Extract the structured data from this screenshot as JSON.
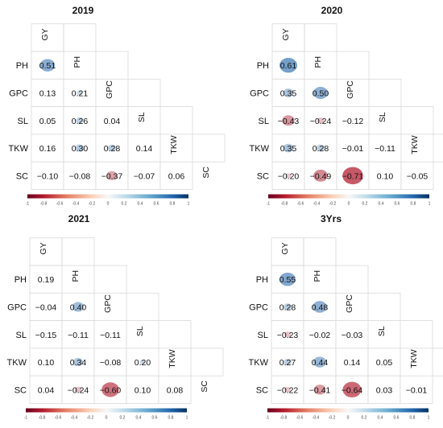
{
  "chart_data": [
    {
      "type": "heatmap",
      "title": "2019",
      "variables": [
        "GY",
        "PH",
        "GPC",
        "SL",
        "TKW",
        "SC"
      ],
      "rows": [
        "PH",
        "GPC",
        "SL",
        "TKW",
        "SC"
      ],
      "lower_triangle": [
        [
          0.51
        ],
        [
          0.13,
          0.21
        ],
        [
          0.05,
          0.26,
          0.04
        ],
        [
          0.16,
          0.3,
          0.28,
          0.14
        ],
        [
          -0.1,
          -0.08,
          -0.37,
          -0.07,
          0.06
        ]
      ],
      "display_labels": [
        [
          "0.51"
        ],
        [
          "0.13",
          "0.21"
        ],
        [
          "0.05",
          "0.26",
          "0.04"
        ],
        [
          "0.16",
          "0.30",
          "0.28",
          "0.14"
        ],
        [
          "−0.10",
          "−0.08",
          "−0.37",
          "−0.07",
          "0.06"
        ]
      ],
      "colorbar": {
        "range": [
          -1,
          1
        ],
        "ticks": [
          "-1",
          "-0.8",
          "-0.6",
          "-0.4",
          "-0.2",
          "0",
          "0.2",
          "0.4",
          "0.6",
          "0.8",
          "1"
        ]
      }
    },
    {
      "type": "heatmap",
      "title": "2020",
      "variables": [
        "GY",
        "PH",
        "GPC",
        "SL",
        "TKW",
        "SC"
      ],
      "rows": [
        "PH",
        "GPC",
        "SL",
        "TKW",
        "SC"
      ],
      "lower_triangle": [
        [
          0.61
        ],
        [
          0.35,
          0.5
        ],
        [
          -0.43,
          -0.24,
          -0.12
        ],
        [
          0.35,
          0.28,
          -0.01,
          -0.11
        ],
        [
          -0.2,
          -0.49,
          -0.71,
          0.1,
          -0.05
        ]
      ],
      "display_labels": [
        [
          "0.61"
        ],
        [
          "0.35",
          "0.50"
        ],
        [
          "−0.43",
          "−0.24",
          "−0.12"
        ],
        [
          "0.35",
          "0.28",
          "−0.01",
          "−0.11"
        ],
        [
          "−0.20",
          "−0.49",
          "−0.71",
          "0.10",
          "−0.05"
        ]
      ],
      "colorbar": {
        "range": [
          -1,
          1
        ],
        "ticks": [
          "-1",
          "-0.8",
          "-0.6",
          "-0.4",
          "-0.2",
          "0",
          "0.2",
          "0.4",
          "0.6",
          "0.8",
          "1"
        ]
      }
    },
    {
      "type": "heatmap",
      "title": "2021",
      "variables": [
        "GY",
        "PH",
        "GPC",
        "SL",
        "TKW",
        "SC"
      ],
      "rows": [
        "PH",
        "GPC",
        "SL",
        "TKW",
        "SC"
      ],
      "lower_triangle": [
        [
          0.19
        ],
        [
          -0.04,
          0.4
        ],
        [
          -0.15,
          -0.11,
          -0.11
        ],
        [
          0.1,
          0.34,
          -0.08,
          0.2
        ],
        [
          0.04,
          -0.24,
          -0.6,
          0.1,
          0.08
        ]
      ],
      "display_labels": [
        [
          "0.19"
        ],
        [
          "−0.04",
          "0.40"
        ],
        [
          "−0.15",
          "−0.11",
          "−0.11"
        ],
        [
          "0.10",
          "0.34",
          "−0.08",
          "0.20"
        ],
        [
          "0.04",
          "−0.24",
          "−0.60",
          "0.10",
          "0.08"
        ]
      ],
      "colorbar": {
        "range": [
          -1,
          1
        ],
        "ticks": [
          "-1",
          "-0.8",
          "-0.6",
          "-0.4",
          "-0.2",
          "0",
          "0.2",
          "0.4",
          "0.6",
          "0.8",
          "1"
        ]
      }
    },
    {
      "type": "heatmap",
      "title": "3Yrs",
      "variables": [
        "GY",
        "PH",
        "GPC",
        "SL",
        "TKW",
        "SC"
      ],
      "rows": [
        "PH",
        "GPC",
        "SL",
        "TKW",
        "SC"
      ],
      "lower_triangle": [
        [
          0.55
        ],
        [
          0.28,
          0.48
        ],
        [
          -0.23,
          -0.02,
          -0.03
        ],
        [
          0.27,
          0.44,
          0.14,
          0.05
        ],
        [
          -0.22,
          -0.41,
          -0.64,
          0.03,
          -0.01
        ]
      ],
      "display_labels": [
        [
          "0.55"
        ],
        [
          "0.28",
          "0.48"
        ],
        [
          "−0.23",
          "−0.02",
          "−0.03"
        ],
        [
          "0.27",
          "0.44",
          "0.14",
          "0.05"
        ],
        [
          "−0.22",
          "−0.41",
          "−0.64",
          "0.03",
          "−0.01"
        ]
      ],
      "colorbar": {
        "range": [
          -1,
          1
        ],
        "ticks": [
          "-1",
          "-0.8",
          "-0.6",
          "-0.4",
          "-0.2",
          "0",
          "0.2",
          "0.4",
          "0.6",
          "0.8",
          "1"
        ]
      }
    }
  ],
  "colors": {
    "negative": "#b2182b",
    "neutral": "#f7f7f7",
    "positive": "#2166ac",
    "grid": "#d9d9d9",
    "text": "#111111"
  }
}
